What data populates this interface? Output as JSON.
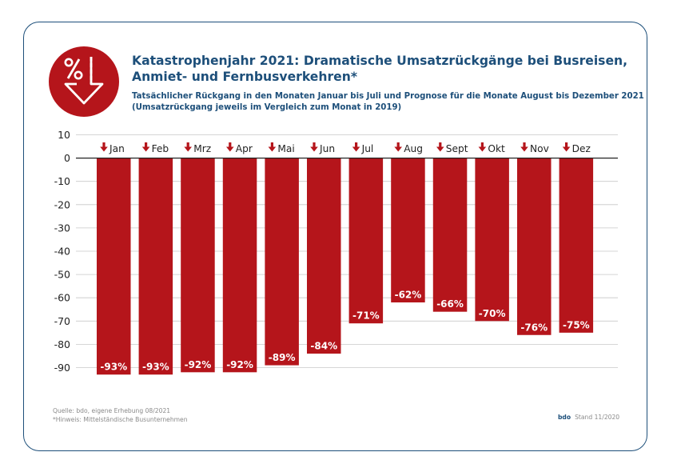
{
  "chart_data": {
    "type": "bar",
    "title": "Katastrophenjahr 2021: Dramatische Umsatzrückgänge bei Busreisen, Anmiet- und Fernbusverkehren*",
    "title_lines": [
      "Katastrophenjahr 2021: Dramatische Umsatzrückgänge bei Busreisen,",
      "Anmiet- und Fernbusverkehren*"
    ],
    "subtitle_lines": [
      "Tatsächlicher Rückgang in den Monaten Januar bis Juli und Prognose für die Monate August bis Dezember 2021",
      "(Umsatzrückgang jeweils im Vergleich zum Monat in 2019)"
    ],
    "categories": [
      "Jan",
      "Feb",
      "Mrz",
      "Apr",
      "Mai",
      "Jun",
      "Jul",
      "Aug",
      "Sept",
      "Okt",
      "Nov",
      "Dez"
    ],
    "values": [
      -93,
      -93,
      -92,
      -92,
      -89,
      -84,
      -71,
      -62,
      -66,
      -70,
      -76,
      -75
    ],
    "data_labels": [
      "-93%",
      "-93%",
      "-92%",
      "-92%",
      "-89%",
      "-84%",
      "-71%",
      "-62%",
      "-66%",
      "-70%",
      "-76%",
      "-75%"
    ],
    "yticks": [
      10,
      0,
      -10,
      -20,
      -30,
      -40,
      -50,
      -60,
      -70,
      -80,
      -90
    ],
    "ylim": [
      -93,
      10
    ],
    "grid": true,
    "xlabel": "",
    "ylabel": "",
    "colors": {
      "bar": "#b5151b",
      "title": "#1d4f7a",
      "grid": "#c8c8c8",
      "axis": "#222222"
    }
  },
  "logo_icon": "percent-down-arrow-icon",
  "footer": {
    "source": "Quelle: bdo, eigene Erhebung 08/2021",
    "note": "*Hinweis: Mittelständische Busunternehmen",
    "brand": "bdo",
    "stand": "Stand 11/2020"
  }
}
